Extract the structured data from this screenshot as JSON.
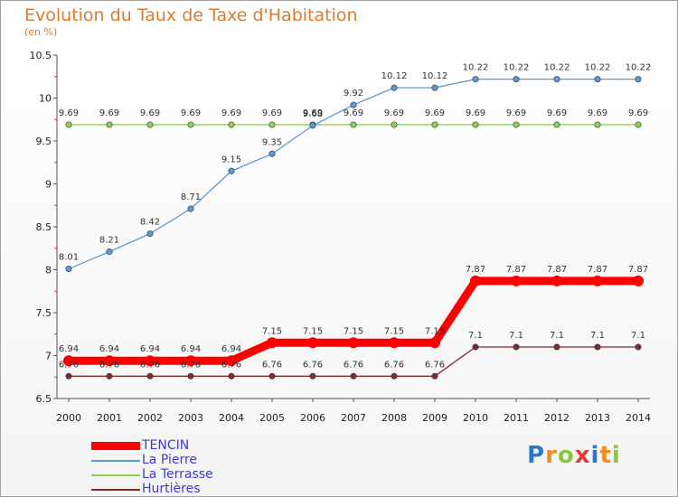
{
  "header": {
    "title": "Evolution du Taux de Taxe d'Habitation",
    "subtitle": "(en %)"
  },
  "chart_data": {
    "type": "line",
    "title": "Evolution du Taux de Taxe d'Habitation",
    "subtitle": "(en %)",
    "xlabel": "",
    "ylabel": "",
    "x": [
      "2000",
      "2001",
      "2002",
      "2003",
      "2004",
      "2005",
      "2006",
      "2007",
      "2008",
      "2009",
      "2010",
      "2011",
      "2012",
      "2013",
      "2014"
    ],
    "ylim": [
      6.5,
      10.5
    ],
    "yticks": [
      "6.5",
      "7",
      "7.5",
      "8",
      "8.5",
      "9",
      "9.5",
      "10",
      "10.5"
    ],
    "grid": false,
    "legend_position": "bottom-left",
    "series": [
      {
        "name": "TENCIN",
        "color": "#ff0000",
        "values": [
          6.94,
          6.94,
          6.94,
          6.94,
          6.94,
          7.15,
          7.15,
          7.15,
          7.15,
          7.15,
          7.87,
          7.87,
          7.87,
          7.87,
          7.87
        ],
        "labels": [
          "6.94",
          "6.94",
          "6.94",
          "6.94",
          "6.94",
          "7.15",
          "7.15",
          "7.15",
          "7.15",
          "7.15",
          "7.87",
          "7.87",
          "7.87",
          "7.87",
          "7.87"
        ]
      },
      {
        "name": "La Pierre",
        "color": "#5b9bd5",
        "values": [
          8.01,
          8.21,
          8.42,
          8.71,
          9.15,
          9.35,
          9.68,
          9.92,
          10.12,
          10.12,
          10.22,
          10.22,
          10.22,
          10.22,
          10.22
        ],
        "labels": [
          "8.01",
          "8.21",
          "8.42",
          "8.71",
          "9.15",
          "9.35",
          "9.68",
          "9.92",
          "10.12",
          "10.12",
          "10.22",
          "10.22",
          "10.22",
          "10.22",
          "10.22"
        ]
      },
      {
        "name": "La Terrasse",
        "color": "#8fd14f",
        "values": [
          9.69,
          9.69,
          9.69,
          9.69,
          9.69,
          9.69,
          9.69,
          9.69,
          9.69,
          9.69,
          9.69,
          9.69,
          9.69,
          9.69,
          9.69
        ],
        "labels": [
          "9.69",
          "9.69",
          "9.69",
          "9.69",
          "9.69",
          "9.69",
          "9.69",
          "9.69",
          "9.69",
          "9.69",
          "9.69",
          "9.69",
          "9.69",
          "9.69",
          "9.69"
        ]
      },
      {
        "name": "Hurtières",
        "color": "#7a2e2e",
        "values": [
          6.76,
          6.76,
          6.76,
          6.76,
          6.76,
          6.76,
          6.76,
          6.76,
          6.76,
          6.76,
          7.1,
          7.1,
          7.1,
          7.1,
          7.1
        ],
        "labels": [
          "6.76",
          "6.76",
          "6.76",
          "6.76",
          "6.76",
          "6.76",
          "6.76",
          "6.76",
          "6.76",
          "6.76",
          "7.1",
          "7.1",
          "7.1",
          "7.1",
          "7.1"
        ]
      }
    ]
  },
  "logo": {
    "letters": [
      "P",
      "r",
      "o",
      "x",
      "i",
      "t",
      "i"
    ],
    "colors": [
      "#2b78c8",
      "#f28c1e",
      "#8cc63f",
      "#e53935",
      "#2b78c8",
      "#f28c1e",
      "#8cc63f"
    ]
  }
}
